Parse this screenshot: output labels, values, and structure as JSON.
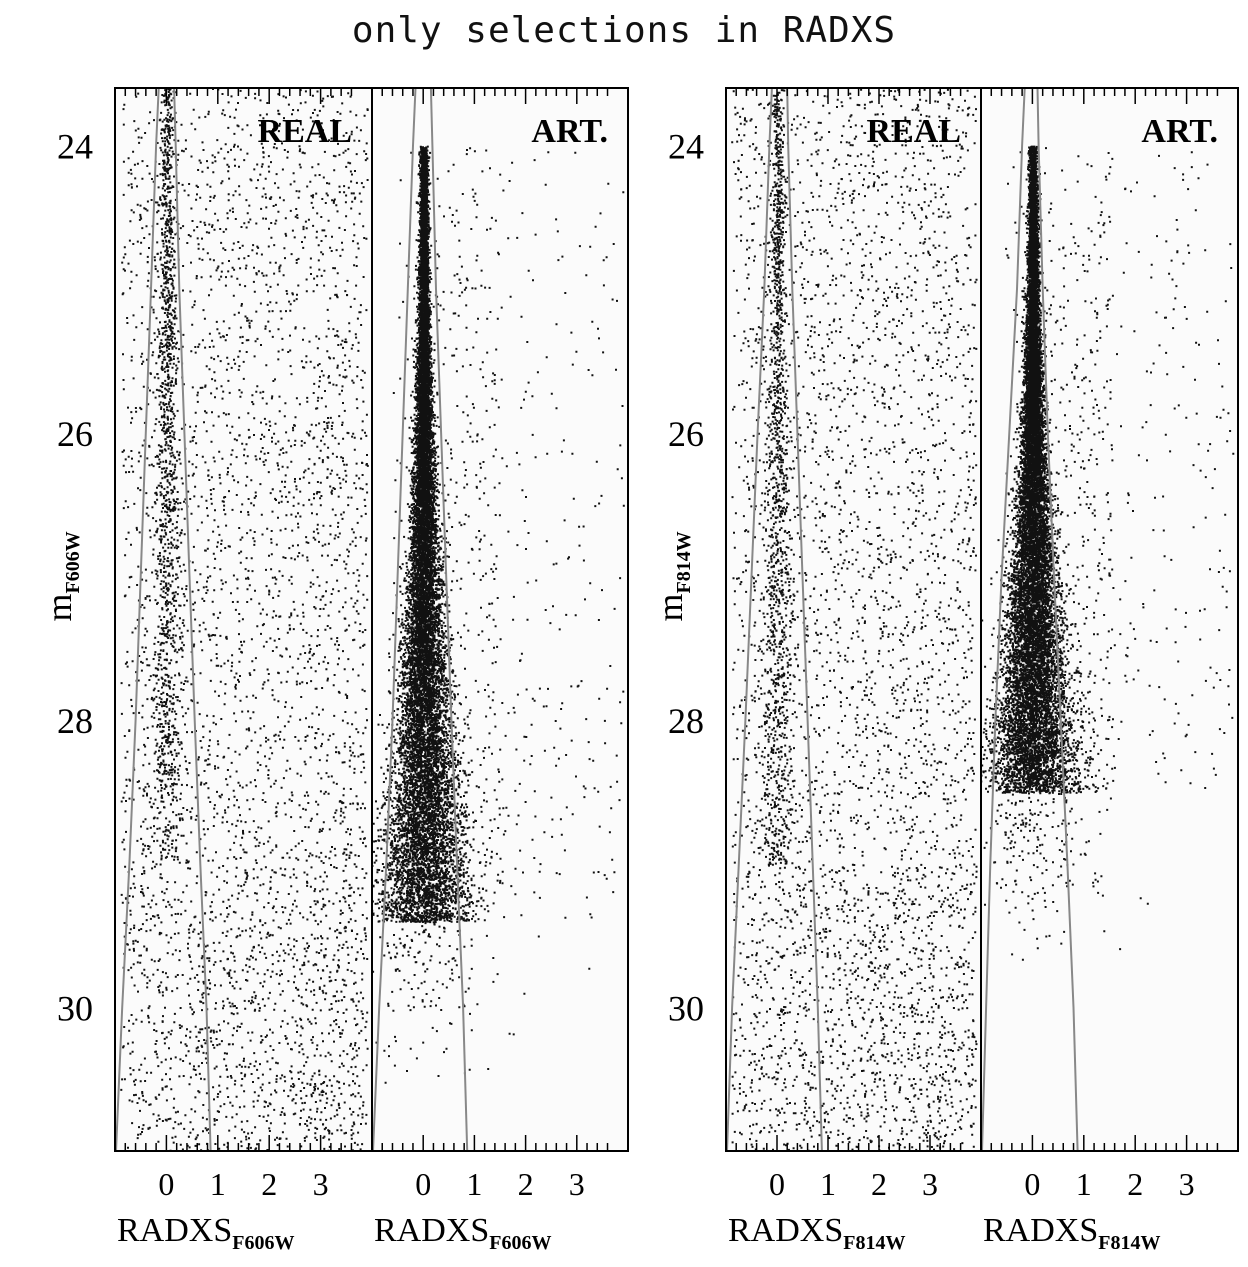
{
  "figure_title": "only selections in RADXS",
  "chart_data": [
    {
      "type": "scatter",
      "panel_label": "REAL",
      "ylabel_main": "m",
      "ylabel_sub": "F606W",
      "xlabel_main": "RADXS",
      "xlabel_sub": "F606W",
      "xlim": [
        -1.0,
        4.0
      ],
      "ylim": [
        31.0,
        23.6
      ],
      "x_ticks": [
        0,
        1,
        2,
        3
      ],
      "y_ticks": [
        24,
        26,
        28,
        30
      ],
      "show_y_tick_labels": true,
      "grid": false,
      "point_color": "#111111",
      "boundary_color": "#888888",
      "population": "real",
      "point_count": 5200,
      "selection_boundary": {
        "mag": [
          23.6,
          24.0,
          25.0,
          26.0,
          27.0,
          28.0,
          29.0,
          30.0,
          31.0
        ],
        "left": [
          -0.15,
          -0.2,
          -0.3,
          -0.4,
          -0.5,
          -0.6,
          -0.72,
          -0.86,
          -0.98
        ],
        "right": [
          0.15,
          0.18,
          0.25,
          0.35,
          0.45,
          0.55,
          0.66,
          0.78,
          0.86
        ]
      }
    },
    {
      "type": "scatter",
      "panel_label": "ART.",
      "ylabel_main": "",
      "ylabel_sub": "",
      "xlabel_main": "RADXS",
      "xlabel_sub": "F606W",
      "xlim": [
        -1.0,
        4.0
      ],
      "ylim": [
        31.0,
        23.6
      ],
      "x_ticks": [
        0,
        1,
        2,
        3
      ],
      "y_ticks": [
        24,
        26,
        28,
        30
      ],
      "show_y_tick_labels": false,
      "grid": false,
      "point_color": "#111111",
      "boundary_color": "#888888",
      "population": "artificial",
      "point_count": 16000,
      "mag_max": 29.4,
      "selection_boundary": {
        "mag": [
          23.6,
          24.0,
          25.0,
          26.0,
          27.0,
          28.0,
          29.0,
          30.0,
          31.0
        ],
        "left": [
          -0.15,
          -0.2,
          -0.3,
          -0.4,
          -0.5,
          -0.6,
          -0.72,
          -0.86,
          -0.98
        ],
        "right": [
          0.15,
          0.18,
          0.25,
          0.35,
          0.45,
          0.55,
          0.66,
          0.78,
          0.86
        ]
      }
    },
    {
      "type": "scatter",
      "panel_label": "REAL",
      "ylabel_main": "m",
      "ylabel_sub": "F814W",
      "xlabel_main": "RADXS",
      "xlabel_sub": "F814W",
      "xlim": [
        -1.0,
        4.0
      ],
      "ylim": [
        31.0,
        23.6
      ],
      "x_ticks": [
        0,
        1,
        2,
        3
      ],
      "y_ticks": [
        24,
        26,
        28,
        30
      ],
      "show_y_tick_labels": true,
      "grid": false,
      "point_color": "#111111",
      "boundary_color": "#888888",
      "population": "real",
      "point_count": 5200,
      "selection_boundary": {
        "mag": [
          23.6,
          24.0,
          25.0,
          26.0,
          27.0,
          28.0,
          29.0,
          30.0,
          31.0
        ],
        "left": [
          -0.1,
          -0.15,
          -0.25,
          -0.38,
          -0.5,
          -0.62,
          -0.75,
          -0.88,
          -0.98
        ],
        "right": [
          0.2,
          0.22,
          0.3,
          0.4,
          0.5,
          0.6,
          0.7,
          0.8,
          0.88
        ]
      }
    },
    {
      "type": "scatter",
      "panel_label": "ART.",
      "ylabel_main": "",
      "ylabel_sub": "",
      "xlabel_main": "RADXS",
      "xlabel_sub": "F814W",
      "xlim": [
        -1.0,
        4.0
      ],
      "ylim": [
        31.0,
        23.6
      ],
      "x_ticks": [
        0,
        1,
        2,
        3
      ],
      "y_ticks": [
        24,
        26,
        28,
        30
      ],
      "show_y_tick_labels": false,
      "grid": false,
      "point_color": "#111111",
      "boundary_color": "#888888",
      "population": "artificial",
      "point_count": 16000,
      "mag_max": 28.5,
      "selection_boundary": {
        "mag": [
          23.6,
          24.0,
          25.0,
          26.0,
          27.0,
          28.0,
          29.0,
          30.0,
          31.0
        ],
        "left": [
          -0.15,
          -0.2,
          -0.3,
          -0.45,
          -0.6,
          -0.72,
          -0.82,
          -0.9,
          -0.98
        ],
        "right": [
          0.1,
          0.12,
          0.2,
          0.3,
          0.42,
          0.55,
          0.68,
          0.8,
          0.88
        ]
      }
    }
  ]
}
